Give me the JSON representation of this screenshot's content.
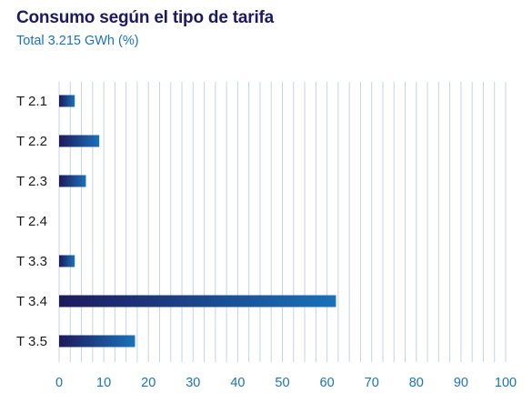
{
  "chart_data": {
    "type": "bar",
    "orientation": "horizontal",
    "title": "Consumo según el tipo de tarifa",
    "subtitle": "Total 3.215 GWh (%)",
    "categories": [
      "T 2.1",
      "T 2.2",
      "T 2.3",
      "T 2.4",
      "T 3.3",
      "T 3.4",
      "T 3.5"
    ],
    "values": [
      3.5,
      9,
      6,
      0,
      3.5,
      62,
      17
    ],
    "xlim": [
      0,
      100
    ],
    "x_ticks": [
      0,
      10,
      20,
      30,
      40,
      50,
      60,
      70,
      80,
      90,
      100
    ],
    "x_tick_labels": [
      "0",
      "10",
      "20",
      "30",
      "40",
      "50",
      "60",
      "70",
      "80",
      "90",
      "100"
    ],
    "grid": "vertical, every 2.5",
    "bar_gradient": [
      "#1e1a5c",
      "#1a72b8"
    ],
    "grid_color": "#c5d3e6"
  }
}
